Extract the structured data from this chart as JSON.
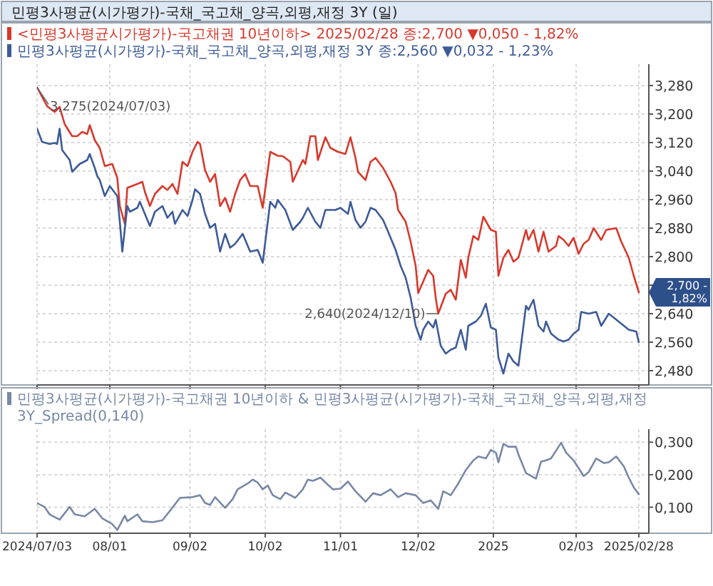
{
  "chart_data": [
    {
      "type": "line",
      "title": "민평3사평균(시가평가)-국채_국고채_양곡,외평,재정 3Y (일)",
      "series": [
        {
          "name": "<민평3사평균시가평가)-국고채권 10년이하> 2025/02/28 종:2,700 ▼0,050 - 1,82%",
          "color": "#d8382c",
          "x": [
            "2024-07-03",
            "2024-07-07",
            "2024-07-10",
            "2024-07-12",
            "2024-07-14",
            "2024-07-17",
            "2024-07-19",
            "2024-07-21",
            "2024-07-23",
            "2024-07-24",
            "2024-07-26",
            "2024-07-28",
            "2024-07-30",
            "2024-08-02",
            "2024-08-04",
            "2024-08-05",
            "2024-08-07",
            "2024-08-08",
            "2024-08-12",
            "2024-08-14",
            "2024-08-15",
            "2024-08-17",
            "2024-08-19",
            "2024-08-22",
            "2024-08-24",
            "2024-08-26",
            "2024-08-28",
            "2024-08-30",
            "2024-09-01",
            "2024-09-03",
            "2024-09-05",
            "2024-09-06",
            "2024-09-08",
            "2024-09-10",
            "2024-09-12",
            "2024-09-14",
            "2024-09-16",
            "2024-09-18",
            "2024-09-20",
            "2024-09-22",
            "2024-09-24",
            "2024-09-26",
            "2024-09-29",
            "2024-10-01",
            "2024-10-04",
            "2024-10-07",
            "2024-10-09",
            "2024-10-12",
            "2024-10-13",
            "2024-10-17",
            "2024-10-18",
            "2024-10-20",
            "2024-10-22",
            "2024-10-23",
            "2024-10-26",
            "2024-10-28",
            "2024-10-31",
            "2024-11-03",
            "2024-11-05",
            "2024-11-07",
            "2024-11-08",
            "2024-11-11",
            "2024-11-13",
            "2024-11-15",
            "2024-11-18",
            "2024-11-21",
            "2024-11-23",
            "2024-11-24",
            "2024-11-27",
            "2024-11-29",
            "2024-12-01",
            "2024-12-02",
            "2024-12-04",
            "2024-12-06",
            "2024-12-08",
            "2024-12-09",
            "2024-12-10",
            "2024-12-13",
            "2024-12-15",
            "2024-12-17",
            "2024-12-19",
            "2024-12-21",
            "2024-12-22",
            "2024-12-24",
            "2024-12-26",
            "2024-12-28",
            "2024-12-31",
            "2025-01-02",
            "2025-01-03",
            "2025-01-05",
            "2025-01-07",
            "2025-01-09",
            "2025-01-11",
            "2025-01-14",
            "2025-01-15",
            "2025-01-17",
            "2025-01-19",
            "2025-01-21",
            "2025-01-23",
            "2025-01-26",
            "2025-01-27",
            "2025-01-29",
            "2025-01-31",
            "2025-02-02",
            "2025-02-04",
            "2025-02-06",
            "2025-02-08",
            "2025-02-10",
            "2025-02-13",
            "2025-02-15",
            "2025-02-19",
            "2025-02-21",
            "2025-02-24",
            "2025-02-26",
            "2025-02-28"
          ],
          "values": [
            3.275,
            3.222,
            3.206,
            3.22,
            3.172,
            3.138,
            3.138,
            3.15,
            3.144,
            3.169,
            3.127,
            3.105,
            3.054,
            3.06,
            3.021,
            2.942,
            2.892,
            2.993,
            3.004,
            3.01,
            2.982,
            2.942,
            2.976,
            2.998,
            2.987,
            3.004,
            2.976,
            3.066,
            3.054,
            3.094,
            3.122,
            3.116,
            3.043,
            3.01,
            3.032,
            2.942,
            2.965,
            2.926,
            2.976,
            3.015,
            3.032,
            2.998,
            2.998,
            2.937,
            3.094,
            3.083,
            3.082,
            3.066,
            3.01,
            3.071,
            3.06,
            3.138,
            3.138,
            3.071,
            3.135,
            3.105,
            3.094,
            3.088,
            3.135,
            3.077,
            3.038,
            3.015,
            3.066,
            3.077,
            3.049,
            3.01,
            2.978,
            2.931,
            2.898,
            2.842,
            2.774,
            2.698,
            2.73,
            2.763,
            2.746,
            2.685,
            2.64,
            2.696,
            2.707,
            2.679,
            2.791,
            2.741,
            2.797,
            2.858,
            2.847,
            2.912,
            2.875,
            2.87,
            2.746,
            2.797,
            2.819,
            2.786,
            2.797,
            2.875,
            2.847,
            2.875,
            2.814,
            2.87,
            2.814,
            2.83,
            2.858,
            2.847,
            2.83,
            2.853,
            2.808,
            2.836,
            2.847,
            2.88,
            2.847,
            2.875,
            2.88,
            2.842,
            2.797,
            2.746,
            2.7
          ]
        },
        {
          "name": "민평3사평균(시가평가)-국채_국고채_양곡,외평,재정 3Y 종:2,560 ▼0,032 - 1,23%",
          "color": "#3d5b97",
          "x": [
            "2024-07-03",
            "2024-07-05",
            "2024-07-08",
            "2024-07-10",
            "2024-07-11",
            "2024-07-12",
            "2024-07-13",
            "2024-07-16",
            "2024-07-17",
            "2024-07-20",
            "2024-07-23",
            "2024-07-24",
            "2024-07-26",
            "2024-07-27",
            "2024-07-28",
            "2024-07-30",
            "2024-08-01",
            "2024-08-04",
            "2024-08-05",
            "2024-08-06",
            "2024-08-08",
            "2024-08-09",
            "2024-08-12",
            "2024-08-13",
            "2024-08-15",
            "2024-08-17",
            "2024-08-19",
            "2024-08-22",
            "2024-08-24",
            "2024-08-26",
            "2024-08-27",
            "2024-08-30",
            "2024-09-01",
            "2024-09-03",
            "2024-09-04",
            "2024-09-06",
            "2024-09-08",
            "2024-09-10",
            "2024-09-12",
            "2024-09-14",
            "2024-09-16",
            "2024-09-18",
            "2024-09-20",
            "2024-09-23",
            "2024-09-26",
            "2024-09-29",
            "2024-10-01",
            "2024-10-04",
            "2024-10-06",
            "2024-10-07",
            "2024-10-10",
            "2024-10-13",
            "2024-10-16",
            "2024-10-17",
            "2024-10-19",
            "2024-10-22",
            "2024-10-24",
            "2024-10-26",
            "2024-10-30",
            "2024-11-01",
            "2024-11-04",
            "2024-11-05",
            "2024-11-07",
            "2024-11-09",
            "2024-11-11",
            "2024-11-13",
            "2024-11-15",
            "2024-11-18",
            "2024-11-20",
            "2024-11-23",
            "2024-11-25",
            "2024-11-27",
            "2024-11-29",
            "2024-12-01",
            "2024-12-03",
            "2024-12-04",
            "2024-12-06",
            "2024-12-08",
            "2024-12-09",
            "2024-12-11",
            "2024-12-13",
            "2024-12-15",
            "2024-12-17",
            "2024-12-19",
            "2024-12-21",
            "2024-12-22",
            "2024-12-25",
            "2024-12-27",
            "2024-12-29",
            "2024-12-31",
            "2025-01-02",
            "2025-01-03",
            "2025-01-05",
            "2025-01-07",
            "2025-01-09",
            "2025-01-11",
            "2025-01-14",
            "2025-01-15",
            "2025-01-17",
            "2025-01-19",
            "2025-01-21",
            "2025-01-22",
            "2025-01-24",
            "2025-01-27",
            "2025-01-29",
            "2025-01-31",
            "2025-02-02",
            "2025-02-04",
            "2025-02-05",
            "2025-02-08",
            "2025-02-11",
            "2025-02-13",
            "2025-02-16",
            "2025-02-18",
            "2025-02-21",
            "2025-02-24",
            "2025-02-27",
            "2025-02-28"
          ],
          "values": [
            3.159,
            3.122,
            3.116,
            3.119,
            3.116,
            3.159,
            3.099,
            3.071,
            3.038,
            3.06,
            3.071,
            3.088,
            3.049,
            3.026,
            3.015,
            2.97,
            2.998,
            2.97,
            2.898,
            2.814,
            2.942,
            2.926,
            2.937,
            2.954,
            2.92,
            2.886,
            2.926,
            2.942,
            2.909,
            2.926,
            2.892,
            2.931,
            2.914,
            2.959,
            2.989,
            2.976,
            2.92,
            2.881,
            2.892,
            2.814,
            2.864,
            2.825,
            2.836,
            2.864,
            2.814,
            2.819,
            2.783,
            2.954,
            2.937,
            2.959,
            2.931,
            2.875,
            2.898,
            2.909,
            2.937,
            2.898,
            2.881,
            2.931,
            2.931,
            2.937,
            2.92,
            2.954,
            2.903,
            2.881,
            2.898,
            2.937,
            2.931,
            2.903,
            2.87,
            2.819,
            2.774,
            2.741,
            2.685,
            2.606,
            2.567,
            2.595,
            2.618,
            2.601,
            2.623,
            2.55,
            2.528,
            2.539,
            2.545,
            2.595,
            2.539,
            2.606,
            2.618,
            2.634,
            2.668,
            2.601,
            2.595,
            2.517,
            2.472,
            2.528,
            2.506,
            2.494,
            2.662,
            2.651,
            2.679,
            2.606,
            2.59,
            2.618,
            2.584,
            2.567,
            2.562,
            2.567,
            2.584,
            2.595,
            2.645,
            2.64,
            2.645,
            2.606,
            2.64,
            2.629,
            2.612,
            2.595,
            2.59,
            2.56
          ]
        }
      ],
      "xlim": [
        "2024-07-03",
        "2025-03-04"
      ],
      "xticks": [
        {
          "value": "2024-07-03",
          "label": null
        },
        {
          "value": "2024-08-01",
          "label": null
        },
        {
          "value": "2024-09-02",
          "label": null
        },
        {
          "value": "2024-10-02",
          "label": null
        },
        {
          "value": "2024-11-01",
          "label": null
        },
        {
          "value": "2024-12-02",
          "label": null
        },
        {
          "value": "2025-01-01",
          "label": null
        },
        {
          "value": "2025-02-03",
          "label": null
        },
        {
          "value": "2025-02-28",
          "label": null
        }
      ],
      "ylim": [
        2.44,
        3.34
      ],
      "yticks": [
        {
          "value": 2.48,
          "label": "2,480"
        },
        {
          "value": 2.56,
          "label": "2,560"
        },
        {
          "value": 2.64,
          "label": "2,640"
        },
        {
          "value": 2.72,
          "label": null
        },
        {
          "value": 2.8,
          "label": "2,800"
        },
        {
          "value": 2.88,
          "label": "2,880"
        },
        {
          "value": 2.96,
          "label": "2,960"
        },
        {
          "value": 3.04,
          "label": "3,040"
        },
        {
          "value": 3.12,
          "label": "3,120"
        },
        {
          "value": 3.2,
          "label": "3,200"
        },
        {
          "value": 3.28,
          "label": "3,280"
        }
      ],
      "grid": true,
      "legend": "top left",
      "tick_labels": "y",
      "annotations": [
        {
          "text": "3,275(2024/07/03)",
          "x": "2024-07-03",
          "y": 3.275
        },
        {
          "text": "2,640(2024/12/10)",
          "x": "2024-12-10",
          "y": 2.64
        },
        {
          "text": "2,700 - 1,82%",
          "x": "2025-02-28",
          "y": 2.7
        }
      ]
    },
    {
      "type": "line",
      "series": [
        {
          "name": "민평3사평균(시가평가)-국고채권 10년이하 & 민평3사평균(시가평가)-국채_국고채_양곡,외평,재정 3Y_Spread(0,140)",
          "color": "#7888a6",
          "x": [
            "2024-07-03",
            "2024-07-06",
            "2024-07-08",
            "2024-07-12",
            "2024-07-16",
            "2024-07-18",
            "2024-07-22",
            "2024-07-26",
            "2024-07-29",
            "2024-08-02",
            "2024-08-04",
            "2024-08-07",
            "2024-08-08",
            "2024-08-12",
            "2024-08-14",
            "2024-08-18",
            "2024-08-22",
            "2024-08-25",
            "2024-08-29",
            "2024-09-03",
            "2024-09-06",
            "2024-09-08",
            "2024-09-10",
            "2024-09-12",
            "2024-09-16",
            "2024-09-19",
            "2024-09-21",
            "2024-09-25",
            "2024-09-27",
            "2024-09-29",
            "2024-10-01",
            "2024-10-03",
            "2024-10-05",
            "2024-10-08",
            "2024-10-10",
            "2024-10-14",
            "2024-10-17",
            "2024-10-19",
            "2024-10-21",
            "2024-10-24",
            "2024-10-27",
            "2024-10-29",
            "2024-11-01",
            "2024-11-04",
            "2024-11-07",
            "2024-11-11",
            "2024-11-14",
            "2024-11-17",
            "2024-11-21",
            "2024-11-24",
            "2024-11-27",
            "2024-12-01",
            "2024-12-04",
            "2024-12-07",
            "2024-12-10",
            "2024-12-12",
            "2024-12-15",
            "2024-12-18",
            "2024-12-21",
            "2024-12-24",
            "2024-12-26",
            "2024-12-29",
            "2024-12-31",
            "2025-01-02",
            "2025-01-03",
            "2025-01-05",
            "2025-01-07",
            "2025-01-10",
            "2025-01-11",
            "2025-01-14",
            "2025-01-18",
            "2025-01-20",
            "2025-01-22",
            "2025-01-24",
            "2025-01-26",
            "2025-01-28",
            "2025-01-30",
            "2025-02-02",
            "2025-02-06",
            "2025-02-08",
            "2025-02-11",
            "2025-02-14",
            "2025-02-16",
            "2025-02-19",
            "2025-02-22",
            "2025-02-24",
            "2025-02-26",
            "2025-02-28"
          ],
          "values": [
            0.113,
            0.101,
            0.078,
            0.062,
            0.101,
            0.078,
            0.072,
            0.095,
            0.066,
            0.048,
            0.03,
            0.074,
            0.057,
            0.078,
            0.057,
            0.054,
            0.06,
            0.089,
            0.129,
            0.131,
            0.137,
            0.113,
            0.107,
            0.131,
            0.098,
            0.125,
            0.155,
            0.173,
            0.185,
            0.176,
            0.155,
            0.167,
            0.137,
            0.125,
            0.145,
            0.129,
            0.155,
            0.185,
            0.181,
            0.191,
            0.169,
            0.155,
            0.157,
            0.179,
            0.149,
            0.117,
            0.143,
            0.137,
            0.155,
            0.131,
            0.143,
            0.137,
            0.113,
            0.121,
            0.095,
            0.149,
            0.137,
            0.173,
            0.214,
            0.244,
            0.256,
            0.25,
            0.276,
            0.268,
            0.238,
            0.295,
            0.286,
            0.286,
            0.262,
            0.205,
            0.188,
            0.24,
            0.244,
            0.25,
            0.274,
            0.298,
            0.268,
            0.244,
            0.196,
            0.208,
            0.25,
            0.236,
            0.238,
            0.256,
            0.226,
            0.191,
            0.161,
            0.14
          ]
        }
      ],
      "xlim": [
        "2024-07-03",
        "2025-03-04"
      ],
      "xticks": [
        {
          "value": "2024-07-03",
          "label": "2024/07/03"
        },
        {
          "value": "2024-08-01",
          "label": "08/01"
        },
        {
          "value": "2024-09-02",
          "label": "09/02"
        },
        {
          "value": "2024-10-02",
          "label": "10/02"
        },
        {
          "value": "2024-11-01",
          "label": "11/01"
        },
        {
          "value": "2024-12-02",
          "label": "12/02"
        },
        {
          "value": "2025-01-01",
          "label": "2025"
        },
        {
          "value": "2025-02-03",
          "label": "02/03"
        },
        {
          "value": "2025-02-28",
          "label": "2025/02/28"
        }
      ],
      "ylim": [
        0.02,
        0.34
      ],
      "yticks": [
        {
          "value": 0.1,
          "label": "0,100"
        },
        {
          "value": 0.2,
          "label": "0,200"
        },
        {
          "value": 0.3,
          "label": "0,300"
        }
      ],
      "grid": true,
      "legend": "top left"
    }
  ]
}
